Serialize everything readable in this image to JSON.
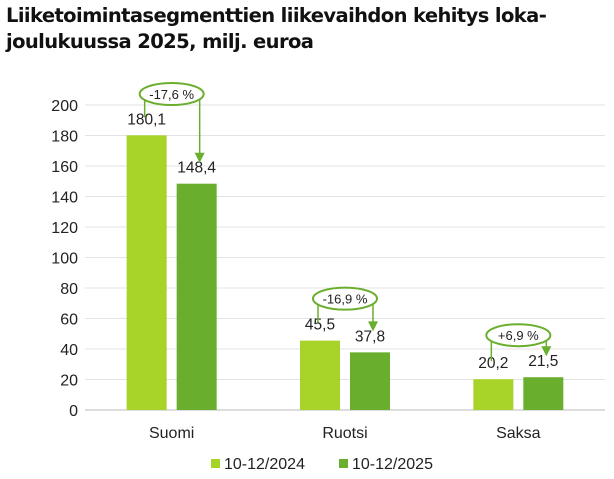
{
  "chart_data": {
    "type": "bar",
    "title": "Liiketoimintasegmenttien liikevaihdon kehitys loka-joulukuussa 2025, milj. euroa",
    "categories": [
      "Suomi",
      "Ruotsi",
      "Saksa"
    ],
    "series": [
      {
        "name": "10-12/2024",
        "color": "#a8d42a",
        "values": [
          180.1,
          45.5,
          20.2
        ],
        "labels": [
          "180,1",
          "45,5",
          "20,2"
        ]
      },
      {
        "name": "10-12/2025",
        "color": "#6aae2e",
        "values": [
          148.4,
          37.8,
          21.5
        ],
        "labels": [
          "148,4",
          "37,8",
          "21,5"
        ]
      }
    ],
    "annotations": [
      "-17,6 %",
      "-16,9 %",
      "+6,9 %"
    ],
    "yticks": [
      "0",
      "20",
      "40",
      "60",
      "80",
      "100",
      "120",
      "140",
      "160",
      "180",
      "200"
    ],
    "ylim": [
      0,
      200
    ],
    "grid": true,
    "legend": "bottom"
  }
}
